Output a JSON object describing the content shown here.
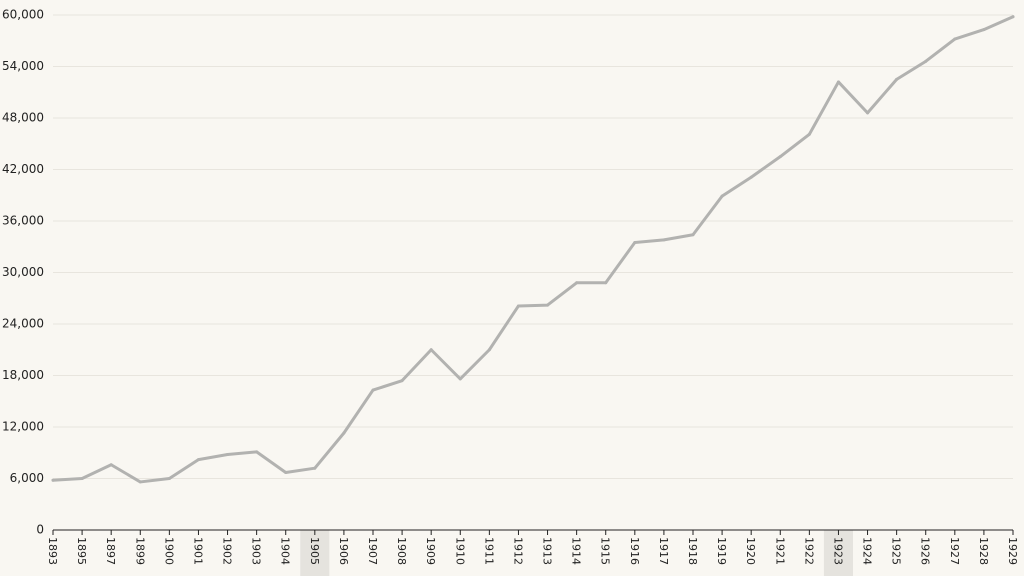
{
  "chart_data": {
    "type": "line",
    "title": "",
    "xlabel": "",
    "ylabel": "",
    "categories": [
      "1893",
      "1895",
      "1897",
      "1899",
      "1900",
      "1901",
      "1902",
      "1903",
      "1904",
      "1905",
      "1906",
      "1907",
      "1908",
      "1909",
      "1910",
      "1911",
      "1912",
      "1913",
      "1914",
      "1915",
      "1916",
      "1917",
      "1918",
      "1919",
      "1920",
      "1921",
      "1922",
      "1923",
      "1924",
      "1925",
      "1926",
      "1927",
      "1928",
      "1929"
    ],
    "series": [
      {
        "values": [
          5800,
          6000,
          7600,
          5600,
          6000,
          8200,
          8800,
          9100,
          6700,
          7200,
          11300,
          16300,
          17400,
          21000,
          17600,
          21000,
          26100,
          26200,
          28800,
          28800,
          33500,
          33800,
          34400,
          38900,
          41100,
          43500,
          46100,
          52200,
          48600,
          52500,
          54600,
          57200,
          58300,
          59800
        ],
        "color": "#b2b2b0"
      }
    ],
    "yticks": [
      "0",
      "6,000",
      "12,000",
      "18,000",
      "24,000",
      "30,000",
      "36,000",
      "42,000",
      "48,000",
      "54,000",
      "60,000"
    ],
    "ylim": [
      0,
      60000
    ],
    "highlighted_categories": [
      "1905",
      "1923"
    ],
    "grid": true,
    "legend": "none"
  }
}
